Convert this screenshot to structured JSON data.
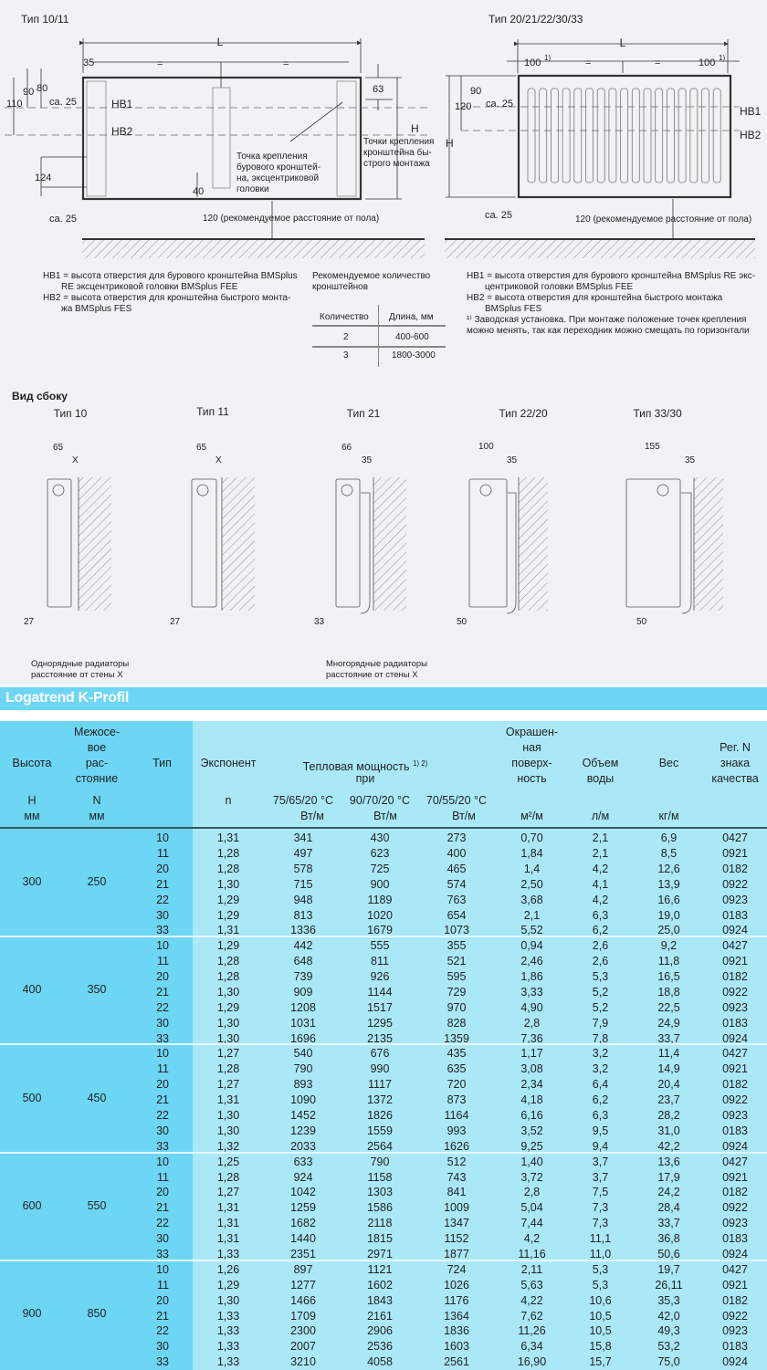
{
  "top_left": {
    "title": "Тип 10/11",
    "dim_L": "L",
    "dim_35": "35",
    "eq1": "=",
    "eq2": "=",
    "dim_90": "90",
    "dim_80": "80",
    "dim_110": "110",
    "dim_ca25_top": "ca. 25",
    "hb1": "HB1",
    "hb2": "HB2",
    "dim_63": "63",
    "dim_H": "H",
    "dim_124": "124",
    "dim_ca25_bottom": "ca. 25",
    "dim_40": "40",
    "drill_point_note": [
      "Точка крепления",
      "бурового кронштей-",
      "на, эксцентриковой",
      "головки"
    ],
    "quick_point_note": [
      "Точки крепления",
      "кронштейна бы-",
      "строго монтажа"
    ],
    "floor_note": "120 (рекомендуемое расстояние от пола)"
  },
  "top_right": {
    "title": "Тип 20/21/22/30/33",
    "dim_L": "L",
    "dim_100_left": "100",
    "dim_100_right": "100",
    "footnote_mark": "1)",
    "eq1": "=",
    "eq2": "=",
    "dim_90": "90",
    "dim_120": "120",
    "dim_ca25_top": "ca. 25",
    "dim_H": "H",
    "hb1": "HB1",
    "hb2": "HB2",
    "dim_ca25_bottom": "ca. 25",
    "floor_note": "120 (рекомендуемое расстояние от пола)"
  },
  "legend_left": [
    "HB1 = высота отверстия для бурового кронштейна BMSplus",
    "RE эксцентриковой головки BMSplus FEE",
    "HB2 = высота отверстия для кронштейна быстрого монта-",
    "жа BMSplus FES"
  ],
  "brackets": {
    "title": [
      "Рекомендуемое количество",
      "кронштейнов"
    ],
    "headers": [
      "Количество",
      "Длина, мм"
    ],
    "rows": [
      [
        "2",
        "400-600"
      ],
      [
        "3",
        "1800-3000"
      ]
    ]
  },
  "legend_right": [
    "HB1 = высота отверстия для бурового кронштейна BMSplus RE экс-",
    "центриковой головки BMSplus FEE",
    "HB2 = высота отверстия для кронштейна быстрого монтажа",
    "BMSplus FES",
    "¹⁾ Заводская установка. При монтаже положение точек крепления",
    "можно менять, так как переходник можно смещать по горизонтали"
  ],
  "side_view": {
    "heading": "Вид сбоку",
    "types": [
      {
        "title": "Тип 10",
        "depth": "65",
        "gap": "X",
        "bottom": "27"
      },
      {
        "title": "Тип 11",
        "depth": "65",
        "gap": "X",
        "bottom": "27"
      },
      {
        "title": "Тип 21",
        "depth": "66",
        "gap": "35",
        "bottom": "33"
      },
      {
        "title": "Тип 22/20",
        "depth": "100",
        "gap": "35",
        "bottom": "50"
      },
      {
        "title": "Тип 33/30",
        "depth": "155",
        "gap": "35",
        "bottom": "50"
      }
    ],
    "note_single": [
      "Однорядные радиаторы",
      "расстояние от стены X"
    ],
    "note_multi": [
      "Многорядные радиаторы",
      "расстояние от стены X"
    ]
  },
  "table": {
    "title": "Logatrend K-Profil",
    "colors": {
      "band": "#6dd6f4",
      "left_columns": "#6dd6f4",
      "body": "#aae8f8"
    },
    "headers": {
      "height": "Высота",
      "spacing": [
        "Межосе-",
        "вое",
        "рас-",
        "стояние"
      ],
      "type": "Тип",
      "exponent": "Экспонент",
      "heat_output": "Тепловая мощность",
      "heat_output_sup": "1) 2)",
      "heat_output_2": "при",
      "surface": [
        "Окрашен-",
        "ная",
        "поверх-",
        "ность"
      ],
      "water": [
        "Объем",
        "воды"
      ],
      "weight": "Вес",
      "reg": [
        "Рег. N",
        "знака",
        "качества"
      ]
    },
    "units": {
      "height": [
        "H",
        "мм"
      ],
      "spacing": [
        "N",
        "мм"
      ],
      "exponent": "n",
      "t1": [
        "75/65/20 °C",
        "Вт/м"
      ],
      "t2": [
        "90/70/20 °C",
        "Вт/м"
      ],
      "t3": [
        "70/55/20 °C",
        "Вт/м"
      ],
      "surface": "м²/м",
      "water": "л/м",
      "weight": "кг/м"
    },
    "groups": [
      {
        "H": "300",
        "N": "250",
        "rows": [
          [
            "10",
            "1,31",
            "341",
            "430",
            "273",
            "0,70",
            "2,1",
            "6,9",
            "0427"
          ],
          [
            "11",
            "1,28",
            "497",
            "623",
            "400",
            "1,84",
            "2,1",
            "8,5",
            "0921"
          ],
          [
            "20",
            "1,28",
            "578",
            "725",
            "465",
            "1,4",
            "4,2",
            "12,6",
            "0182"
          ],
          [
            "21",
            "1,30",
            "715",
            "900",
            "574",
            "2,50",
            "4,1",
            "13,9",
            "0922"
          ],
          [
            "22",
            "1,29",
            "948",
            "1189",
            "763",
            "3,68",
            "4,2",
            "16,6",
            "0923"
          ],
          [
            "30",
            "1,29",
            "813",
            "1020",
            "654",
            "2,1",
            "6,3",
            "19,0",
            "0183"
          ],
          [
            "33",
            "1,31",
            "1336",
            "1679",
            "1073",
            "5,52",
            "6,2",
            "25,0",
            "0924"
          ]
        ]
      },
      {
        "H": "400",
        "N": "350",
        "rows": [
          [
            "10",
            "1,29",
            "442",
            "555",
            "355",
            "0,94",
            "2,6",
            "9,2",
            "0427"
          ],
          [
            "11",
            "1,28",
            "648",
            "811",
            "521",
            "2,46",
            "2,6",
            "11,8",
            "0921"
          ],
          [
            "20",
            "1,28",
            "739",
            "926",
            "595",
            "1,86",
            "5,3",
            "16,5",
            "0182"
          ],
          [
            "21",
            "1,30",
            "909",
            "1144",
            "729",
            "3,33",
            "5,2",
            "18,8",
            "0922"
          ],
          [
            "22",
            "1,29",
            "1208",
            "1517",
            "970",
            "4,90",
            "5,2",
            "22,5",
            "0923"
          ],
          [
            "30",
            "1,30",
            "1031",
            "1295",
            "828",
            "2,8",
            "7,9",
            "24,9",
            "0183"
          ],
          [
            "33",
            "1,30",
            "1696",
            "2135",
            "1359",
            "7,36",
            "7,8",
            "33,7",
            "0924"
          ]
        ]
      },
      {
        "H": "500",
        "N": "450",
        "rows": [
          [
            "10",
            "1,27",
            "540",
            "676",
            "435",
            "1,17",
            "3,2",
            "11,4",
            "0427"
          ],
          [
            "11",
            "1,28",
            "790",
            "990",
            "635",
            "3,08",
            "3,2",
            "14,9",
            "0921"
          ],
          [
            "20",
            "1,27",
            "893",
            "1117",
            "720",
            "2,34",
            "6,4",
            "20,4",
            "0182"
          ],
          [
            "21",
            "1,31",
            "1090",
            "1372",
            "873",
            "4,18",
            "6,2",
            "23,7",
            "0922"
          ],
          [
            "22",
            "1,30",
            "1452",
            "1826",
            "1164",
            "6,16",
            "6,3",
            "28,2",
            "0923"
          ],
          [
            "30",
            "1,30",
            "1239",
            "1559",
            "993",
            "3,52",
            "9,5",
            "31,0",
            "0183"
          ],
          [
            "33",
            "1,32",
            "2033",
            "2564",
            "1626",
            "9,25",
            "9,4",
            "42,2",
            "0924"
          ]
        ]
      },
      {
        "H": "600",
        "N": "550",
        "rows": [
          [
            "10",
            "1,25",
            "633",
            "790",
            "512",
            "1,40",
            "3,7",
            "13,6",
            "0427"
          ],
          [
            "11",
            "1,28",
            "924",
            "1158",
            "743",
            "3,72",
            "3,7",
            "17,9",
            "0921"
          ],
          [
            "20",
            "1,27",
            "1042",
            "1303",
            "841",
            "2,8",
            "7,5",
            "24,2",
            "0182"
          ],
          [
            "21",
            "1,31",
            "1259",
            "1586",
            "1009",
            "5,04",
            "7,3",
            "28,4",
            "0922"
          ],
          [
            "22",
            "1,31",
            "1682",
            "2118",
            "1347",
            "7,44",
            "7,3",
            "33,7",
            "0923"
          ],
          [
            "30",
            "1,31",
            "1440",
            "1815",
            "1152",
            "4,2",
            "11,1",
            "36,8",
            "0183"
          ],
          [
            "33",
            "1,33",
            "2351",
            "2971",
            "1877",
            "11,16",
            "11,0",
            "50,6",
            "0924"
          ]
        ]
      },
      {
        "H": "900",
        "N": "850",
        "rows": [
          [
            "10",
            "1,26",
            "897",
            "1121",
            "724",
            "2,11",
            "5,3",
            "19,7",
            "0427"
          ],
          [
            "11",
            "1,29",
            "1277",
            "1602",
            "1026",
            "5,63",
            "5,3",
            "26,11",
            "0921"
          ],
          [
            "20",
            "1,30",
            "1466",
            "1843",
            "1176",
            "4,22",
            "10,6",
            "35,3",
            "0182"
          ],
          [
            "21",
            "1,33",
            "1709",
            "2161",
            "1364",
            "7,62",
            "10,5",
            "42,0",
            "0922"
          ],
          [
            "22",
            "1,33",
            "2300",
            "2906",
            "1836",
            "11,26",
            "10,5",
            "49,3",
            "0923"
          ],
          [
            "30",
            "1,33",
            "2007",
            "2536",
            "1603",
            "6,34",
            "15,8",
            "53,2",
            "0183"
          ],
          [
            "33",
            "1,33",
            "3210",
            "4058",
            "2561",
            "16,90",
            "15,7",
            "75,0",
            "0924"
          ]
        ]
      }
    ]
  }
}
